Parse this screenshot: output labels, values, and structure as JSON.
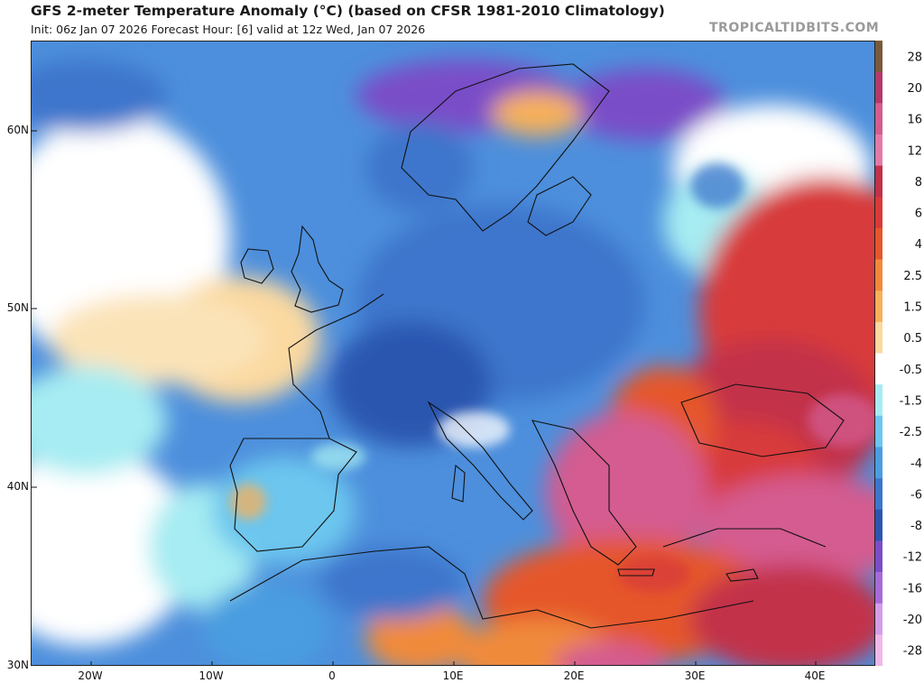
{
  "title": "GFS 2-meter Temperature Anomaly (°C) (based on CFSR 1981-2010 Climatology)",
  "subtitle": "Init: 06z Jan 07 2026   Forecast Hour: [6]   valid at 12z Wed, Jan 07 2026",
  "watermark": "TROPICALTIDBITS.COM",
  "map": {
    "variable": "2-meter temperature anomaly",
    "units": "°C",
    "lat_labels": [
      "60N",
      "50N",
      "40N",
      "30N"
    ],
    "lon_labels": [
      "20W",
      "10W",
      "0",
      "10E",
      "20E",
      "30E",
      "40E"
    ]
  },
  "colorbar": {
    "labels": [
      "28",
      "20",
      "16",
      "12",
      "8",
      "6",
      "4",
      "2.5",
      "1.5",
      "0.5",
      "-0.5",
      "-1.5",
      "-2.5",
      "-4",
      "-6",
      "-8",
      "-12",
      "-16",
      "-20",
      "-28"
    ],
    "colors": [
      "#7a5a3c",
      "#b23a6a",
      "#d45c90",
      "#e27aa8",
      "#c2304a",
      "#d83a3a",
      "#e5572c",
      "#f08a3a",
      "#f7b05a",
      "#fbd9a0",
      "#ffffff",
      "#a6ecf2",
      "#6cc6ee",
      "#4a9de0",
      "#3c76cc",
      "#2b56b0",
      "#7a4ec8",
      "#a86ad8",
      "#d29ee8",
      "#f0b8e8"
    ]
  }
}
